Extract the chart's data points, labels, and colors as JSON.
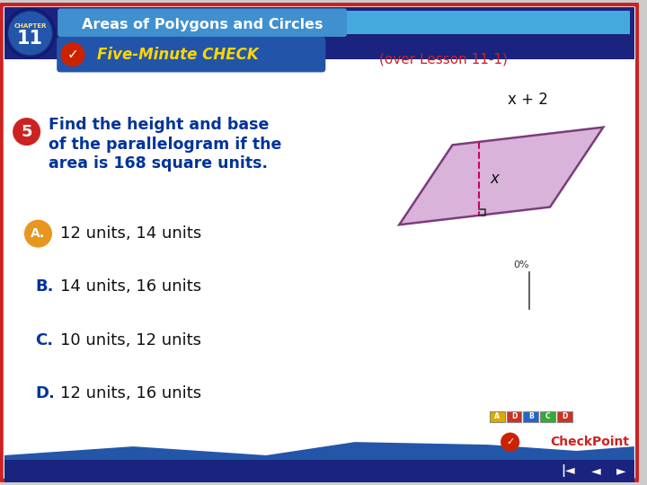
{
  "title_chapter": "CHAPTER",
  "chapter_num": "11",
  "header_title": "Areas of Polygons and Circles",
  "check_label": "(over Lesson 11-1)",
  "question_num": "5",
  "question_line1": "Find the height and base",
  "question_line2": "of the parallelogram if the",
  "question_line3": "area is 168 square units.",
  "answer_A": "12 units, 14 units",
  "answer_B": "14 units, 16 units",
  "answer_C": "10 units, 12 units",
  "answer_D": "12 units, 16 units",
  "parallelogram_label_top": "x + 2",
  "parallelogram_label_height": "x",
  "parallelogram_fill": "#d9b3d9",
  "parallelogram_stroke": "#7a3d7a",
  "dashed_line_color": "#cc0066",
  "answer_correct_bg": "#e8961e",
  "percent_label": "0%",
  "outer_bg": "#cccccc",
  "main_bg": "#ffffff",
  "red_border": "#cc2222",
  "header_dark_blue": "#1a237e",
  "header_mid_blue": "#2356a8",
  "header_light_blue": "#4090d0",
  "five_check_bg": "#2255aa",
  "check_text_color": "#ffd700",
  "over_lesson_color": "#cc2222",
  "q_circle_color": "#cc2222",
  "q_text_color": "#003399",
  "answer_letter_color": "#003399",
  "answer_text_color": "#111111",
  "footer_wave_color": "#2356a8",
  "nav_bar_color": "#1a237e",
  "checkpoint_check_color": "#cc2222",
  "checkpoint_text_color": "#cc2222",
  "grid_colors": [
    "#ffaa00",
    "#ff4444",
    "#0088ff",
    "#00aa00",
    "#dd4422",
    "#0055cc"
  ],
  "grid_labels": [
    "A",
    "D",
    "B",
    "C",
    "D"
  ]
}
